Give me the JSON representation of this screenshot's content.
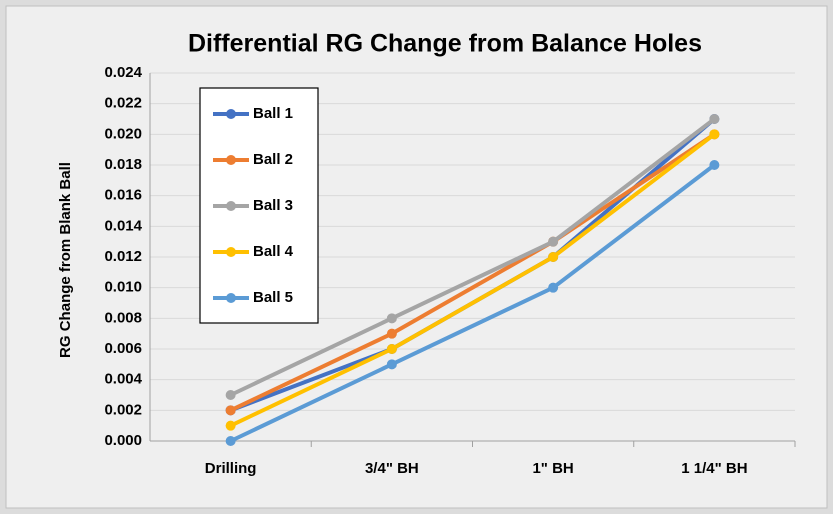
{
  "chart_data": {
    "type": "line",
    "title": "Differential RG Change from Balance Holes",
    "y_label": "RG Change from Blank Ball",
    "categories": [
      "Drilling",
      "3/4\" BH",
      "1\" BH",
      "1 1/4\" BH"
    ],
    "series": [
      {
        "name": "Ball 1",
        "color": "#4472c4",
        "values": [
          0.002,
          0.006,
          0.012,
          0.021
        ]
      },
      {
        "name": "Ball 2",
        "color": "#ed7d31",
        "values": [
          0.002,
          0.007,
          0.013,
          0.02
        ]
      },
      {
        "name": "Ball 3",
        "color": "#a5a5a5",
        "values": [
          0.003,
          0.008,
          0.013,
          0.021
        ]
      },
      {
        "name": "Ball 4",
        "color": "#ffc000",
        "values": [
          0.001,
          0.006,
          0.012,
          0.02
        ]
      },
      {
        "name": "Ball 5",
        "color": "#5b9bd5",
        "values": [
          0.0,
          0.005,
          0.01,
          0.018
        ]
      }
    ],
    "ylim": [
      0,
      0.024
    ],
    "yticks": [
      {
        "value": 0,
        "label": "0.000"
      },
      {
        "value": 0.002,
        "label": "0.002"
      },
      {
        "value": 0.004,
        "label": "0.004"
      },
      {
        "value": 0.006,
        "label": "0.006"
      },
      {
        "value": 0.008,
        "label": "0.008"
      },
      {
        "value": 0.01,
        "label": "0.010"
      },
      {
        "value": 0.012,
        "label": "0.012"
      },
      {
        "value": 0.014,
        "label": "0.014"
      },
      {
        "value": 0.016,
        "label": "0.016"
      },
      {
        "value": 0.018,
        "label": "0.018"
      },
      {
        "value": 0.02,
        "label": "0.020"
      },
      {
        "value": 0.022,
        "label": "0.022"
      },
      {
        "value": 0.024,
        "label": "0.024"
      }
    ],
    "grid": true,
    "legend": "upper left"
  }
}
